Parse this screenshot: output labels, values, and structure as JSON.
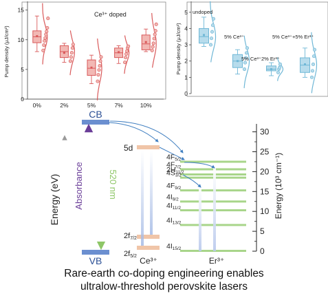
{
  "colors": {
    "ce_red": "#d9595a",
    "ce_fill": "#f2b8b4",
    "undoped_blue": "#6fb7d6",
    "blue_fill": "#b7dcec",
    "cb_vb": "#6b8fd0",
    "ce_level": "#f0c5a8",
    "er_level": "#a8d58a",
    "absorbance": "#6a3d98",
    "emission": "#8ec667",
    "arrow": "#3f7ec0"
  },
  "chart_data": [
    {
      "type": "box",
      "title": "Ce³⁺ doped",
      "ylabel": "Pump density (μJ/cm²)",
      "xlabel": "",
      "categories": [
        "0%",
        "2%",
        "5%",
        "7%",
        "10%"
      ],
      "ylim": [
        0,
        16
      ],
      "yticks": [
        0,
        5,
        10,
        15
      ],
      "series": [
        {
          "values": [
            {
              "q1": 9.5,
              "median": 10.5,
              "q3": 11.5,
              "min": 8.0,
              "max": 14.0,
              "mean": 10.6,
              "points": [
                8.2,
                9.1,
                9.8,
                10.3,
                10.9,
                11.4,
                12.0,
                13.6
              ]
            },
            {
              "q1": 7.0,
              "median": 8.0,
              "q3": 9.0,
              "min": 6.2,
              "max": 9.4,
              "mean": 7.8,
              "points": [
                6.4,
                7.1,
                7.8,
                8.6,
                9.2
              ]
            },
            {
              "q1": 4.0,
              "median": 5.2,
              "q3": 6.6,
              "min": 2.6,
              "max": 7.4,
              "mean": 5.3,
              "points": [
                3.0,
                4.1,
                4.9,
                5.6,
                6.4,
                7.1
              ]
            },
            {
              "q1": 7.0,
              "median": 7.8,
              "q3": 8.6,
              "min": 6.0,
              "max": 9.0,
              "mean": 7.9,
              "points": [
                6.2,
                7.0,
                7.6,
                8.1,
                8.6,
                8.9
              ]
            },
            {
              "q1": 8.3,
              "median": 9.3,
              "q3": 10.8,
              "min": 8.0,
              "max": 11.8,
              "mean": 9.6,
              "points": [
                8.2,
                8.8,
                9.4,
                10.2,
                10.9,
                11.5,
                12.6
              ]
            }
          ]
        }
      ]
    },
    {
      "type": "box",
      "title": "",
      "ylabel": "Pump density (μJ/cm²)",
      "xlabel": "",
      "categories": [
        "undoped",
        "5% Ce³⁺",
        "5% Ce³⁺2% Er³⁺",
        "5% Ce³⁺+5% Er³⁺"
      ],
      "ylim": [
        0,
        5.5
      ],
      "yticks": [
        0,
        1,
        2,
        3,
        4,
        5
      ],
      "series": [
        {
          "values": [
            {
              "q1": 3.1,
              "median": 3.5,
              "q3": 4.0,
              "min": 2.9,
              "max": 4.7,
              "mean": 3.6,
              "points": [
                3.0,
                3.4,
                3.8,
                4.2,
                4.6
              ]
            },
            {
              "q1": 1.6,
              "median": 2.0,
              "q3": 2.4,
              "min": 1.2,
              "max": 2.7,
              "mean": 2.0,
              "points": [
                1.5,
                1.9,
                2.2,
                2.5,
                2.8
              ]
            },
            {
              "q1": 1.4,
              "median": 1.5,
              "q3": 1.7,
              "min": 1.1,
              "max": 1.9,
              "mean": 1.5,
              "points": [
                1.3,
                1.5,
                1.6,
                1.8
              ]
            },
            {
              "q1": 1.3,
              "median": 1.75,
              "q3": 2.2,
              "min": 1.0,
              "max": 2.8,
              "mean": 1.8,
              "points": [
                1.0,
                1.4,
                1.8,
                2.3,
                2.7
              ]
            }
          ]
        }
      ]
    }
  ],
  "diagram": {
    "cb_label": "CB",
    "vb_label": "VB",
    "energy_ev_label": "Energy (eV)",
    "absorbance_label": "Absorbance",
    "emission_label": "520 nm",
    "ce_label": "Ce³⁺",
    "er_label": "Er³⁺",
    "ce_5d_label": "5d",
    "ce_2f72_base": "2f",
    "ce_2f72_sub": "7/2",
    "ce_2f52_base": "2f",
    "ce_2f52_sub": "5/2",
    "energy_axis_label": "Energy (10³ cm⁻¹)",
    "energy_axis_range": [
      0,
      32
    ],
    "energy_ticks": [
      0,
      5,
      10,
      15,
      20,
      25,
      30
    ],
    "er_levels": [
      {
        "base": "4F",
        "sub": "5/2",
        "energy": 22.4
      },
      {
        "base": "4F",
        "sub": "7/2",
        "energy": 20.5
      },
      {
        "base": "2H",
        "sub": "11/2",
        "energy": 19.2
      },
      {
        "base": "4S",
        "sub": "3/2",
        "energy": 18.4
      },
      {
        "base": "4F",
        "sub": "9/2",
        "energy": 15.2
      },
      {
        "base": "4I",
        "sub": "9/2",
        "energy": 12.4
      },
      {
        "base": "4I",
        "sub": "11/2",
        "energy": 10.2
      },
      {
        "base": "4I",
        "sub": "13/2",
        "energy": 6.5
      },
      {
        "base": "4I",
        "sub": "15/2",
        "energy": 0
      }
    ]
  },
  "caption": {
    "line1": "Rare-earth co-doping engineering enables",
    "line2": "ultralow-threshold perovskite lasers"
  }
}
